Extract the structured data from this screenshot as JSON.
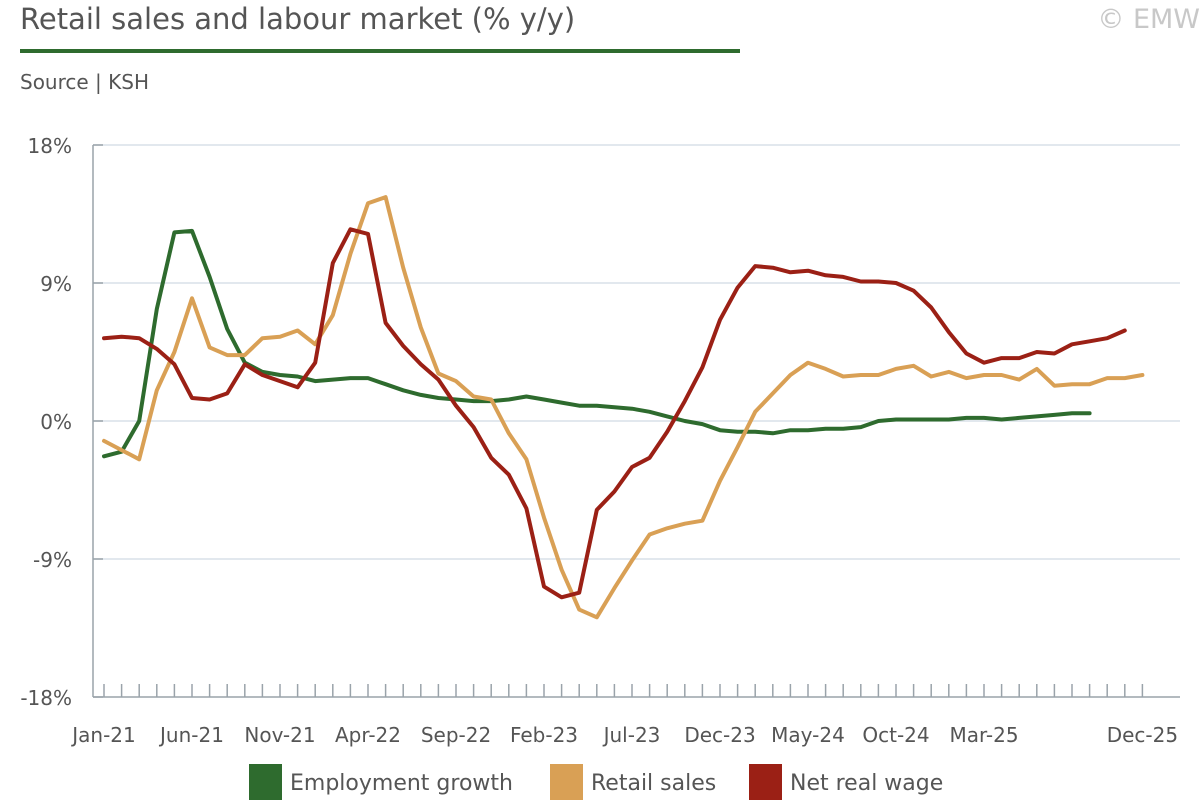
{
  "header": {
    "title": "Retail sales and labour market (% y/y)",
    "source": "Source | KSH",
    "copyright": "© EMW"
  },
  "colors": {
    "employment": "#2e6b2e",
    "retail": "#d9a055",
    "wage": "#9b2015",
    "grid": "#d8e0e8",
    "axis": "#9aa3aa",
    "text": "#555555"
  },
  "chart_data": {
    "type": "line",
    "title": "Retail sales and labour market (% y/y)",
    "xlabel": "",
    "ylabel": "",
    "ylim": [
      -18,
      18
    ],
    "y_ticks": [
      18,
      9,
      0,
      -9,
      -18
    ],
    "y_tick_labels": [
      "18%",
      "9%",
      "0%",
      "-9%",
      "-18%"
    ],
    "x_tick_labels": [
      {
        "label": "Jan-21",
        "index": 0
      },
      {
        "label": "Jun-21",
        "index": 5
      },
      {
        "label": "Nov-21",
        "index": 10
      },
      {
        "label": "Apr-22",
        "index": 15
      },
      {
        "label": "Sep-22",
        "index": 20
      },
      {
        "label": "Feb-23",
        "index": 25
      },
      {
        "label": "Jul-23",
        "index": 30
      },
      {
        "label": "Dec-23",
        "index": 35
      },
      {
        "label": "May-24",
        "index": 40
      },
      {
        "label": "Oct-24",
        "index": 45
      },
      {
        "label": "Mar-25",
        "index": 50
      },
      {
        "label": "Dec-25",
        "index": 59
      }
    ],
    "months": 60,
    "grid": true,
    "legend": "bottom",
    "series": [
      {
        "name": "Employment growth",
        "color": "#2e6b2e",
        "values": [
          -2.3,
          -2.0,
          0.0,
          7.3,
          12.3,
          12.4,
          9.4,
          6.0,
          3.8,
          3.2,
          3.0,
          2.9,
          2.6,
          2.7,
          2.8,
          2.8,
          2.4,
          2.0,
          1.7,
          1.5,
          1.4,
          1.3,
          1.3,
          1.4,
          1.6,
          1.4,
          1.2,
          1.0,
          1.0,
          0.9,
          0.8,
          0.6,
          0.3,
          0.0,
          -0.2,
          -0.6,
          -0.7,
          -0.7,
          -0.8,
          -0.6,
          -0.6,
          -0.5,
          -0.5,
          -0.4,
          0.0,
          0.1,
          0.1,
          0.1,
          0.1,
          0.2,
          0.2,
          0.1,
          0.2,
          0.3,
          0.4,
          0.5,
          0.5
        ]
      },
      {
        "name": "Retail sales",
        "color": "#d9a055",
        "values": [
          -1.3,
          -1.9,
          -2.5,
          2.0,
          4.5,
          8.0,
          4.8,
          4.3,
          4.3,
          5.4,
          5.5,
          5.9,
          5.0,
          6.9,
          10.9,
          14.2,
          14.6,
          10.0,
          6.1,
          3.1,
          2.6,
          1.6,
          1.4,
          -0.8,
          -2.5,
          -6.3,
          -9.7,
          -12.3,
          -12.8,
          -10.9,
          -9.1,
          -7.4,
          -7.0,
          -6.7,
          -6.5,
          -3.9,
          -1.7,
          0.6,
          1.8,
          3.0,
          3.8,
          3.4,
          2.9,
          3.0,
          3.0,
          3.4,
          3.6,
          2.9,
          3.2,
          2.8,
          3.0,
          3.0,
          2.7,
          3.4,
          2.3,
          2.4,
          2.4,
          2.8,
          2.8,
          3.0
        ]
      },
      {
        "name": "Net real wage",
        "color": "#9b2015",
        "values": [
          5.4,
          5.5,
          5.4,
          4.7,
          3.7,
          1.5,
          1.4,
          1.8,
          3.7,
          3.0,
          2.6,
          2.2,
          3.8,
          10.3,
          12.5,
          12.2,
          6.4,
          4.9,
          3.7,
          2.7,
          1.0,
          -0.4,
          -2.4,
          -3.5,
          -5.7,
          -10.8,
          -11.5,
          -11.2,
          -5.8,
          -4.6,
          -3.0,
          -2.4,
          -0.7,
          1.3,
          3.5,
          6.6,
          8.7,
          10.1,
          10.0,
          9.7,
          9.8,
          9.5,
          9.4,
          9.1,
          9.1,
          9.0,
          8.5,
          7.4,
          5.8,
          4.4,
          3.8,
          4.1,
          4.1,
          4.5,
          4.4,
          5.0,
          5.2,
          5.4,
          5.9
        ]
      }
    ]
  }
}
